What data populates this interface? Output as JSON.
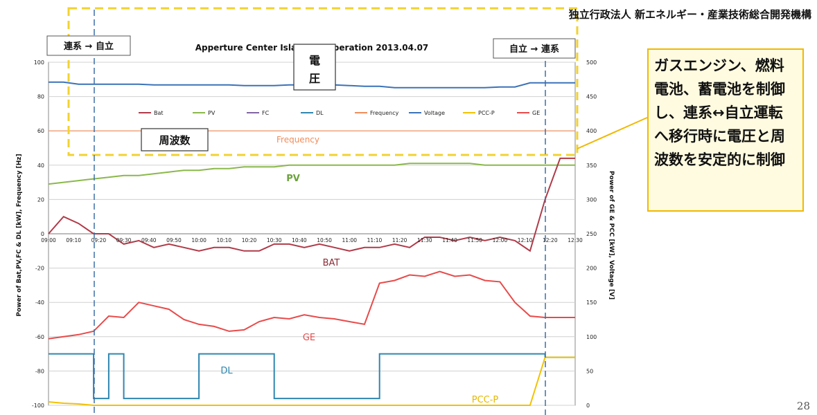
{
  "header": {
    "organization": "独立行政法人 新エネルギー・産業技術総合開発機構",
    "page_number": "28"
  },
  "callout": {
    "text": "ガスエンジン、燃料電池、蓄電池を制御し、連系↔自立運転へ移行時に電圧と周波数を安定的に制御"
  },
  "annotations": {
    "left_mode": "連系 → 自立",
    "right_mode": "自立 → 連系",
    "voltage_box": "電圧",
    "frequency_box": "周波数"
  },
  "colors": {
    "Bat": "#b03a48",
    "PV": "#8ab84a",
    "FC": "#8064a2",
    "DL": "#2e86b0",
    "Frequency": "#f08c5a",
    "Voltage": "#3a72b8",
    "PCC-P": "#f2c200",
    "GE": "#e84a4a",
    "highlight": "#f2d230",
    "callout_border": "#f0b800"
  },
  "chart_data": {
    "type": "line",
    "title": "Apperture Center Islanding Operation  2013.04.07",
    "ylabel_left": "Power of Bat,PV,FC & DL [kW], Frequency [Hz]",
    "ylabel_right": "Power of GE & PCC [kW], Voltage [V]",
    "ylim_left": [
      -100,
      100
    ],
    "ylim_right": [
      0,
      500
    ],
    "yticks_left": [
      100,
      80,
      60,
      40,
      20,
      0,
      -20,
      -40,
      -60,
      -80,
      -100
    ],
    "yticks_right": [
      500,
      450,
      400,
      350,
      300,
      250,
      200,
      150,
      100,
      50,
      0
    ],
    "xticks": [
      "09:00",
      "09:10",
      "09:20",
      "09:30",
      "09:40",
      "09:50",
      "10:00",
      "10:10",
      "10:20",
      "10:30",
      "10:40",
      "10:50",
      "11:00",
      "11:10",
      "11:20",
      "11:30",
      "11:40",
      "11:50",
      "12:00",
      "12:10",
      "12:20",
      "12:30"
    ],
    "legend": [
      "Bat",
      "PV",
      "FC",
      "DL",
      "Frequency",
      "Voltage",
      "PCC-P",
      "GE"
    ],
    "legend_position": "top-inside",
    "grid": true,
    "series_labels": {
      "frequency": "Frequency",
      "pv": "PV",
      "bat": "BAT",
      "ge": "GE",
      "dl": "DL",
      "pcc": "PCC-P"
    },
    "x_minutes": [
      0,
      6,
      12,
      18,
      24,
      30,
      36,
      42,
      48,
      54,
      60,
      66,
      72,
      78,
      84,
      90,
      96,
      102,
      108,
      114,
      120,
      126,
      132,
      138,
      144,
      150,
      156,
      162,
      168,
      174,
      180,
      186,
      192,
      198,
      204,
      210
    ],
    "series": [
      {
        "name": "Voltage",
        "axis": "right",
        "values": [
          471,
          471,
          468,
          468,
          468,
          468,
          468,
          467,
          467,
          467,
          467,
          467,
          467,
          466,
          466,
          466,
          467,
          467,
          467,
          467,
          466,
          465,
          465,
          463,
          463,
          463,
          463,
          463,
          463,
          463,
          464,
          464,
          470,
          470,
          470,
          470
        ]
      },
      {
        "name": "Frequency",
        "axis": "left",
        "values": [
          60,
          60,
          60,
          60,
          60,
          60,
          60,
          60,
          60,
          60,
          60,
          60,
          60,
          60,
          60,
          60,
          60,
          60,
          60,
          60,
          60,
          60,
          60,
          60,
          60,
          60,
          60,
          60,
          60,
          60,
          60,
          60,
          60,
          60,
          60,
          60
        ]
      },
      {
        "name": "PV",
        "axis": "left",
        "values": [
          29,
          30,
          31,
          32,
          33,
          34,
          34,
          35,
          36,
          37,
          37,
          38,
          38,
          39,
          39,
          39,
          40,
          40,
          40,
          40,
          40,
          40,
          40,
          40,
          41,
          41,
          41,
          41,
          41,
          40,
          40,
          40,
          40,
          40,
          40,
          40
        ]
      },
      {
        "name": "Bat",
        "axis": "left",
        "values": [
          0,
          10,
          6,
          0,
          0,
          -6,
          -4,
          -8,
          -6,
          -8,
          -10,
          -8,
          -8,
          -10,
          -10,
          -6,
          -6,
          -8,
          -6,
          -8,
          -10,
          -8,
          -8,
          -6,
          -8,
          -2,
          -2,
          -4,
          -2,
          -4,
          -2,
          -4,
          -10,
          20,
          44,
          44
        ]
      },
      {
        "name": "DL",
        "axis": "left",
        "values": [
          -70,
          -70,
          -70,
          -96,
          -70,
          -96,
          -96,
          -96,
          -96,
          -96,
          -70,
          -70,
          -70,
          -70,
          -70,
          -96,
          -96,
          -96,
          -96,
          -96,
          -96,
          -96,
          -70,
          -70,
          -70,
          -70,
          -70,
          -70,
          -70,
          -70,
          -70,
          -70,
          -70,
          -72,
          -72,
          -72
        ]
      },
      {
        "name": "GE",
        "axis": "right",
        "values": [
          97,
          100,
          103,
          108,
          130,
          128,
          150,
          145,
          140,
          125,
          118,
          115,
          108,
          110,
          122,
          128,
          126,
          132,
          128,
          126,
          122,
          118,
          178,
          182,
          190,
          188,
          195,
          188,
          190,
          182,
          180,
          150,
          130,
          128,
          128,
          128
        ]
      },
      {
        "name": "PCC-P",
        "axis": "right",
        "values": [
          5,
          3,
          2,
          0,
          0,
          0,
          0,
          0,
          0,
          0,
          0,
          0,
          0,
          0,
          0,
          0,
          0,
          0,
          0,
          0,
          0,
          0,
          0,
          0,
          0,
          0,
          0,
          0,
          0,
          0,
          0,
          0,
          0,
          70,
          70,
          70
        ]
      }
    ]
  }
}
